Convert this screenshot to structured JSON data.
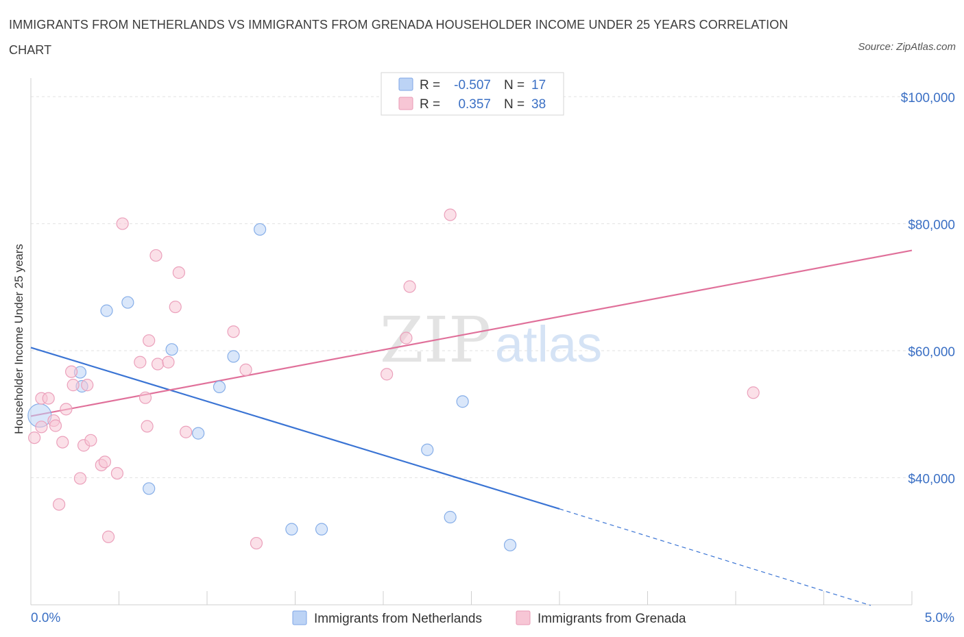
{
  "title": "IMMIGRANTS FROM NETHERLANDS VS IMMIGRANTS FROM GRENADA HOUSEHOLDER INCOME UNDER 25 YEARS CORRELATION CHART",
  "source": "Source: ZipAtlas.com",
  "watermark": {
    "zip": "ZIP",
    "atlas": "atlas"
  },
  "colors": {
    "netherlands": "#3a74d4",
    "grenada": "#e0709a",
    "netherlands_fill": "#bcd3f5",
    "grenada_fill": "#f7c6d5",
    "tick": "#3a6fc4"
  },
  "chart_data": {
    "type": "scatter",
    "xlabel": "",
    "ylabel": "Householder Income Under 25 years",
    "xlim": [
      0,
      5
    ],
    "ylim": [
      20000,
      104000
    ],
    "x_tick_labels": {
      "left": "0.0%",
      "right": "5.0%"
    },
    "y_ticks": [
      {
        "value": 40000,
        "label": "$40,000"
      },
      {
        "value": 60000,
        "label": "$60,000"
      },
      {
        "value": 80000,
        "label": "$80,000"
      },
      {
        "value": 100000,
        "label": "$100,000"
      }
    ],
    "legend": [
      {
        "r_label": "R =",
        "r_value": "-0.507",
        "n_label": "N =",
        "n_value": "17"
      },
      {
        "r_label": "R =",
        "r_value": "0.357",
        "n_label": "N =",
        "n_value": "38"
      }
    ],
    "series": [
      {
        "name": "Immigrants from Netherlands",
        "points": [
          [
            0.05,
            49800
          ],
          [
            0.28,
            56600
          ],
          [
            0.29,
            54400
          ],
          [
            0.43,
            66300
          ],
          [
            0.55,
            67600
          ],
          [
            0.67,
            38300
          ],
          [
            0.8,
            60200
          ],
          [
            0.95,
            47000
          ],
          [
            1.07,
            54300
          ],
          [
            1.15,
            59100
          ],
          [
            1.3,
            79100
          ],
          [
            1.48,
            31900
          ],
          [
            1.65,
            31900
          ],
          [
            2.25,
            44400
          ],
          [
            2.45,
            52000
          ],
          [
            2.38,
            33800
          ],
          [
            2.72,
            29400
          ]
        ],
        "trend": {
          "x0": 0.0,
          "y0": 60500,
          "x1": 3.0,
          "y1": 35100,
          "dash_to_x": 5.0,
          "dash_to_y": 19900
        }
      },
      {
        "name": "Immigrants from Grenada",
        "points": [
          [
            0.02,
            46300
          ],
          [
            0.06,
            52500
          ],
          [
            0.06,
            48000
          ],
          [
            0.1,
            52500
          ],
          [
            0.13,
            49000
          ],
          [
            0.14,
            48200
          ],
          [
            0.16,
            35800
          ],
          [
            0.18,
            45600
          ],
          [
            0.2,
            50800
          ],
          [
            0.23,
            56700
          ],
          [
            0.24,
            54600
          ],
          [
            0.28,
            39900
          ],
          [
            0.3,
            45100
          ],
          [
            0.32,
            54600
          ],
          [
            0.34,
            45900
          ],
          [
            0.4,
            42000
          ],
          [
            0.42,
            42500
          ],
          [
            0.44,
            30700
          ],
          [
            0.49,
            40700
          ],
          [
            0.52,
            80000
          ],
          [
            0.62,
            58200
          ],
          [
            0.65,
            52600
          ],
          [
            0.66,
            48100
          ],
          [
            0.67,
            61600
          ],
          [
            0.71,
            75000
          ],
          [
            0.72,
            57900
          ],
          [
            0.78,
            58200
          ],
          [
            0.82,
            66900
          ],
          [
            0.84,
            72300
          ],
          [
            0.88,
            47200
          ],
          [
            1.15,
            63000
          ],
          [
            1.22,
            57000
          ],
          [
            1.28,
            29700
          ],
          [
            2.02,
            56300
          ],
          [
            2.13,
            62000
          ],
          [
            2.15,
            70100
          ],
          [
            2.38,
            81400
          ],
          [
            4.1,
            53400
          ]
        ],
        "trend": {
          "x0": 0.0,
          "y0": 49700,
          "x1": 5.0,
          "y1": 75800
        }
      }
    ]
  }
}
